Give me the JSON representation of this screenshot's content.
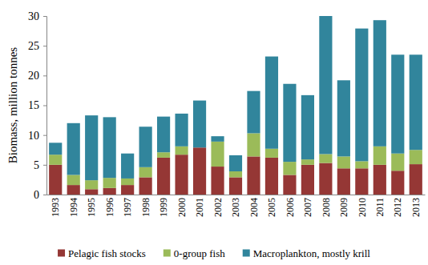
{
  "chart_data": {
    "type": "bar",
    "stacked": true,
    "legend": "bottom",
    "y_label": "Biomass, million tonnes",
    "categories": [
      "1993",
      "1994",
      "1995",
      "1996",
      "1997",
      "1998",
      "1999",
      "2000",
      "2001",
      "2002",
      "2003",
      "2004",
      "2005",
      "2006",
      "2007",
      "2008",
      "2009",
      "2010",
      "2011",
      "2012",
      "2013"
    ],
    "series": [
      {
        "name": "Pelagic fish stocks",
        "color": "#953735",
        "values": [
          5.0,
          1.6,
          0.9,
          1.1,
          1.6,
          2.9,
          6.2,
          6.7,
          7.9,
          4.7,
          2.9,
          6.4,
          6.2,
          3.3,
          5.0,
          5.3,
          4.4,
          4.4,
          5.0,
          4.0,
          5.1
        ]
      },
      {
        "name": "0-group fish",
        "color": "#9bbb59",
        "values": [
          1.7,
          1.7,
          1.5,
          1.7,
          1.1,
          1.7,
          0.9,
          1.4,
          0.0,
          4.2,
          1.0,
          3.9,
          1.5,
          2.2,
          0.9,
          1.5,
          2.0,
          1.2,
          3.1,
          2.9,
          2.4
        ]
      },
      {
        "name": "Macroplankton, mostly krill",
        "color": "#31859c",
        "values": [
          2.0,
          8.7,
          10.9,
          10.2,
          4.2,
          6.8,
          6.0,
          5.5,
          7.9,
          0.9,
          2.7,
          7.1,
          15.5,
          13.1,
          10.8,
          23.2,
          12.8,
          22.3,
          21.2,
          16.6,
          16.0
        ]
      }
    ],
    "ylim": [
      0,
      30
    ],
    "yticks": [
      0,
      5,
      10,
      15,
      20,
      25,
      30
    ]
  }
}
